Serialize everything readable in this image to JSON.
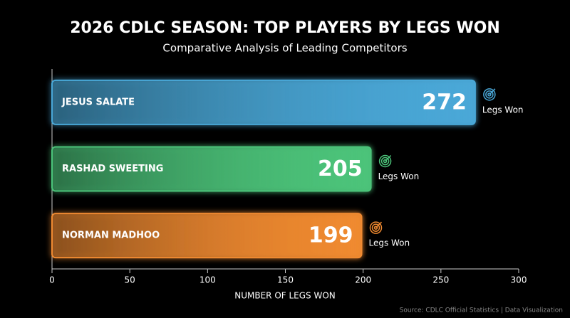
{
  "chart_data": {
    "type": "hbar",
    "title": "2026 CDLC SEASON: TOP PLAYERS BY LEGS WON",
    "subtitle": "Comparative Analysis of Leading Competitors",
    "categories": [
      "JESUS SALATE",
      "RASHAD SWEETING",
      "NORMAN MADHOO"
    ],
    "values": [
      272,
      205,
      199
    ],
    "colors": [
      "#4aa8d8",
      "#4cc47a",
      "#f08a30"
    ],
    "bar_label": "Legs Won",
    "xlabel": "NUMBER OF LEGS WON",
    "xlim": [
      0,
      300
    ],
    "xticks": [
      0,
      50,
      100,
      150,
      200,
      250,
      300
    ],
    "source": "Source: CDLC Official Statistics | Data Visualization"
  }
}
